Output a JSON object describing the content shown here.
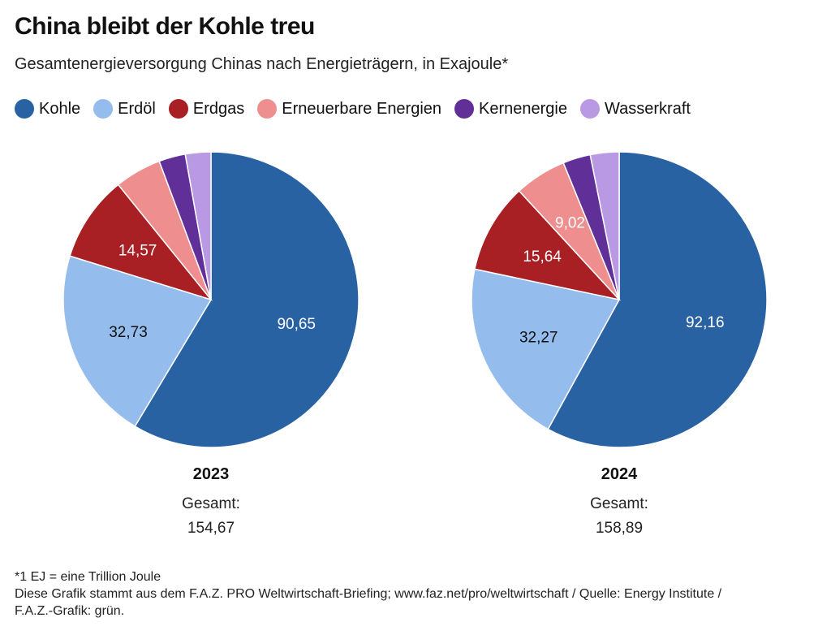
{
  "header": {
    "title": "China bleibt der Kohle treu",
    "subtitle": "Gesamtenergieversorgung Chinas nach Energieträgern, in Exajoule*"
  },
  "legend": [
    {
      "label": "Kohle",
      "color": "#2962a3"
    },
    {
      "label": "Erdöl",
      "color": "#94bcec"
    },
    {
      "label": "Erdgas",
      "color": "#a92024"
    },
    {
      "label": "Erneuerbare Energien",
      "color": "#ee8e8e"
    },
    {
      "label": "Kernenergie",
      "color": "#612f98"
    },
    {
      "label": "Wasserkraft",
      "color": "#b998e4"
    }
  ],
  "footer": {
    "note": "*1 EJ = eine Trillion Joule",
    "source_line1": "Diese Grafik stammt aus dem F.A.Z. PRO Weltwirtschaft-Briefing; www.faz.net/pro/weltwirtschaft / Quelle: Energy Institute /",
    "source_line2": "F.A.Z.-Grafik: grün."
  },
  "chart_data": [
    {
      "type": "pie",
      "title": "2023",
      "total_label": "Gesamt:",
      "total_value": "154,67",
      "categories": [
        "Kohle",
        "Erdöl",
        "Erdgas",
        "Erneuerbare Energien",
        "Kernenergie",
        "Wasserkraft"
      ],
      "values": [
        90.65,
        32.73,
        14.57,
        7.9,
        4.5,
        4.32
      ],
      "data_labels": [
        "90,65",
        "32,73",
        "14,57",
        "",
        "",
        ""
      ]
    },
    {
      "type": "pie",
      "title": "2024",
      "total_label": "Gesamt:",
      "total_value": "158,89",
      "categories": [
        "Kohle",
        "Erdöl",
        "Erdgas",
        "Erneuerbare Energien",
        "Kernenergie",
        "Wasserkraft"
      ],
      "values": [
        92.16,
        32.27,
        15.64,
        9.02,
        4.8,
        5.0
      ],
      "data_labels": [
        "92,16",
        "32,27",
        "15,64",
        "9,02",
        "",
        ""
      ]
    }
  ]
}
